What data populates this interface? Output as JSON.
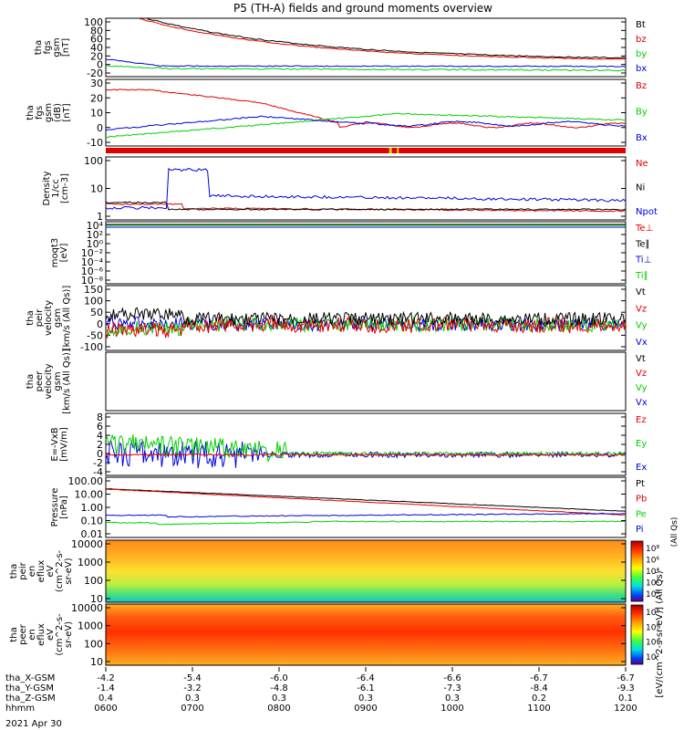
{
  "title": "P5 (TH-A) fields and ground moments overview",
  "date_label": "2021 Apr 30",
  "colors": {
    "black": "#000000",
    "red": "#e00000",
    "green": "#00d000",
    "blue": "#0000e0",
    "strip_red": "#e00000",
    "strip_yellow": "#e0d000"
  },
  "panels": [
    {
      "ylabel": [
        "tha",
        "fgs",
        "gsm",
        "[nT]"
      ],
      "ticks": [
        "100",
        "80",
        "60",
        "40",
        "20",
        "0",
        "-20"
      ],
      "legend": [
        {
          "text": "Bt",
          "color": "#000000"
        },
        {
          "text": "bz",
          "color": "#e00000"
        },
        {
          "text": "by",
          "color": "#00d000"
        },
        {
          "text": "bx",
          "color": "#0000e0"
        }
      ]
    },
    {
      "ylabel": [
        "tha",
        "fgs",
        "gsm",
        "(dB)",
        "[nT]"
      ],
      "ticks": [
        "30",
        "20",
        "10",
        "0",
        "-10"
      ],
      "legend": [
        {
          "text": "Bz",
          "color": "#e00000"
        },
        {
          "text": "By",
          "color": "#00d000"
        },
        {
          "text": "Bx",
          "color": "#0000e0"
        }
      ]
    },
    {
      "ylabel": [
        "Density",
        "1/cc",
        "[cm-3]"
      ],
      "ticks": [
        "100",
        "10",
        "1"
      ],
      "legend": [
        {
          "text": "Ne",
          "color": "#e00000"
        },
        {
          "text": "Ni",
          "color": "#000000"
        },
        {
          "text": "Npot",
          "color": "#0000e0"
        }
      ]
    },
    {
      "ylabel": [
        "moqt3",
        "[eV]"
      ],
      "ticks": [
        "10⁴",
        "10²",
        "10⁰",
        "10⁻²",
        "10⁻⁴",
        "10⁻⁶",
        "10⁻⁸"
      ],
      "legend": [
        {
          "text": "Te⊥",
          "color": "#e00000"
        },
        {
          "text": "Te∥",
          "color": "#000000"
        },
        {
          "text": "Ti⊥",
          "color": "#0000e0"
        },
        {
          "text": "Ti∥",
          "color": "#00d000"
        }
      ]
    },
    {
      "ylabel": [
        "tha",
        "peir",
        "velocity",
        "gsm",
        "[km/s (All Qs)]"
      ],
      "ticks": [
        "150",
        "100",
        "50",
        "0",
        "-50",
        "-100"
      ],
      "legend": [
        {
          "text": "Vt",
          "color": "#000000"
        },
        {
          "text": "Vz",
          "color": "#e00000"
        },
        {
          "text": "Vy",
          "color": "#00d000"
        },
        {
          "text": "Vx",
          "color": "#0000e0"
        }
      ]
    },
    {
      "ylabel": [
        "tha",
        "peer",
        "velocity",
        "gsm",
        "[km/s (All Qs)]"
      ],
      "ticks": [],
      "legend": [
        {
          "text": "Vt",
          "color": "#000000"
        },
        {
          "text": "Vz",
          "color": "#e00000"
        },
        {
          "text": "Vy",
          "color": "#00d000"
        },
        {
          "text": "Vx",
          "color": "#0000e0"
        }
      ]
    },
    {
      "ylabel": [
        "E=-VxB",
        "[mV/m]"
      ],
      "ticks": [
        "8",
        "6",
        "4",
        "2",
        "0",
        "-2",
        "-4"
      ],
      "legend": [
        {
          "text": "Ez",
          "color": "#e00000"
        },
        {
          "text": "Ey",
          "color": "#00d000"
        },
        {
          "text": "Ex",
          "color": "#0000e0"
        }
      ]
    },
    {
      "ylabel": [
        "Pressure",
        "[nPa]"
      ],
      "ticks": [
        "100.00",
        "10.00",
        "1.00",
        "0.10",
        "0.01"
      ],
      "legend": [
        {
          "text": "Pt",
          "color": "#000000"
        },
        {
          "text": "Pb",
          "color": "#e00000"
        },
        {
          "text": "Pe",
          "color": "#00d000"
        },
        {
          "text": "Pi",
          "color": "#0000e0"
        }
      ],
      "side_label": "(All Qs)"
    },
    {
      "ylabel": [
        "tha",
        "peir",
        "en",
        "eflux",
        "eV",
        "(cm^2-s-",
        "sr-eV)"
      ],
      "ticks": [
        "10000",
        "1000",
        "100",
        "10"
      ],
      "colorbar_ticks": [
        "10⁸",
        "10⁶",
        "10⁴",
        "10²",
        "10⁰"
      ]
    },
    {
      "ylabel": [
        "tha",
        "peer",
        "en",
        "eflux",
        "eV",
        "(cm^2-s-",
        "sr-eV)"
      ],
      "ticks": [
        "10000",
        "1000",
        "100",
        "10"
      ],
      "colorbar_ticks": [
        "10⁸",
        "10⁶",
        "10⁴",
        "10²"
      ]
    }
  ],
  "colorbar_label": "[eV/(cm^2-s-sr-eV)] (All Qs)",
  "footer": {
    "row_labels": [
      "tha_X-GSM",
      "tha_Y-GSM",
      "tha_Z-GSM",
      "hhmm"
    ],
    "columns": [
      {
        "x": "-4.2",
        "y": "-1.4",
        "z": "0.4",
        "t": "0600"
      },
      {
        "x": "-5.4",
        "y": "-3.2",
        "z": "0.3",
        "t": "0700"
      },
      {
        "x": "-6.0",
        "y": "-4.8",
        "z": "0.3",
        "t": "0800"
      },
      {
        "x": "-6.4",
        "y": "-6.1",
        "z": "0.3",
        "t": "0900"
      },
      {
        "x": "-6.6",
        "y": "-7.3",
        "z": "0.3",
        "t": "1000"
      },
      {
        "x": "-6.7",
        "y": "-8.4",
        "z": "0.2",
        "t": "1100"
      },
      {
        "x": "-6.7",
        "y": "-9.3",
        "z": "0.1",
        "t": "1200"
      }
    ]
  },
  "chart_data": {
    "type": "line",
    "title": "P5 (TH-A) fields and ground moments overview",
    "x_ticks": [
      "0600",
      "0700",
      "0800",
      "0900",
      "1000",
      "1100",
      "1200"
    ],
    "xlabel": "hhmm",
    "date": "2021 Apr 30",
    "panels": [
      {
        "name": "tha fgs gsm [nT]",
        "ylim": [
          -20,
          100
        ],
        "series": [
          {
            "name": "Bt",
            "x": [
              "0600",
              "0630",
              "0700",
              "0800",
              "0900",
              "1000",
              "1100",
              "1200"
            ],
            "values": [
              130,
              95,
              70,
              45,
              30,
              22,
              18,
              18
            ]
          },
          {
            "name": "bz",
            "x": [
              "0600",
              "0700",
              "0800",
              "0900",
              "1000",
              "1100",
              "1200"
            ],
            "values": [
              25,
              68,
              44,
              30,
              22,
              17,
              17
            ]
          },
          {
            "name": "by",
            "x": [
              "0600",
              "0700",
              "0800",
              "0900",
              "1000",
              "1100",
              "1200"
            ],
            "values": [
              -5,
              -2,
              -3,
              -4,
              -6,
              -8,
              -6
            ]
          },
          {
            "name": "bx",
            "x": [
              "0600",
              "0700",
              "0800",
              "0900",
              "1000",
              "1100",
              "1200"
            ],
            "values": [
              15,
              2,
              2,
              2,
              1,
              1,
              0
            ]
          }
        ]
      },
      {
        "name": "tha fgs gsm (dB) [nT]",
        "ylim": [
          -15,
          30
        ],
        "series": [
          {
            "name": "Bz",
            "x": [
              "0600",
              "0700",
              "0800",
              "0900",
              "1000",
              "1100",
              "1200"
            ],
            "values": [
              23,
              18,
              10,
              0,
              -1,
              -1,
              -3
            ]
          },
          {
            "name": "By",
            "x": [
              "0600",
              "0700",
              "0800",
              "0900",
              "1000",
              "1100",
              "1200"
            ],
            "values": [
              -9,
              -3,
              6,
              7,
              6,
              5,
              2
            ]
          },
          {
            "name": "Bx",
            "x": [
              "0600",
              "0700",
              "0800",
              "0900",
              "1000",
              "1100",
              "1200"
            ],
            "values": [
              -4,
              4,
              6,
              0,
              1,
              0,
              -1
            ]
          }
        ]
      },
      {
        "name": "Density 1/cc [cm-3]",
        "scale": "log",
        "ylim": [
          0.5,
          200
        ],
        "series": [
          {
            "name": "Ne",
            "x": [
              "0600",
              "0700",
              "0800",
              "0900",
              "1000",
              "1100",
              "1200"
            ],
            "values": [
              1.5,
              1.2,
              0.9,
              0.8,
              0.7,
              0.7,
              0.6
            ]
          },
          {
            "name": "Ni",
            "x": [
              "0600",
              "0700",
              "0800",
              "0900",
              "1000",
              "1100",
              "1200"
            ],
            "values": [
              1.8,
              0.9,
              0.8,
              0.7,
              0.7,
              0.6,
              0.6
            ]
          },
          {
            "name": "Npot",
            "x": [
              "0600",
              "0700",
              "0800",
              "0900",
              "1000",
              "1100",
              "1200"
            ],
            "values": [
              1.0,
              20,
              4,
              3.5,
              2.8,
              2.6,
              2.0
            ]
          }
        ]
      },
      {
        "name": "moqt3 [eV]",
        "scale": "log",
        "ylim": [
          1e-08,
          100000.0
        ],
        "series": [
          {
            "name": "Te⊥",
            "values": []
          },
          {
            "name": "Te∥",
            "values": []
          },
          {
            "name": "Ti⊥",
            "values": []
          },
          {
            "name": "Ti∥",
            "values": []
          }
        ]
      },
      {
        "name": "tha peir velocity gsm [km/s (All Qs)]",
        "ylim": [
          -100,
          150
        ],
        "series": [
          {
            "name": "Vt",
            "x": [
              "0600",
              "0700",
              "0800",
              "0900",
              "1000",
              "1100",
              "1200"
            ],
            "values": [
              40,
              25,
              20,
              20,
              20,
              20,
              20
            ]
          },
          {
            "name": "Vz",
            "x": [
              "0600",
              "0700",
              "0800",
              "0900",
              "1000",
              "1100",
              "1200"
            ],
            "values": [
              -10,
              0,
              0,
              0,
              0,
              0,
              0
            ]
          },
          {
            "name": "Vy",
            "x": [
              "0600",
              "0700",
              "0800",
              "0900",
              "1000",
              "1100",
              "1200"
            ],
            "values": [
              0,
              0,
              0,
              0,
              0,
              0,
              0
            ]
          },
          {
            "name": "Vx",
            "x": [
              "0600",
              "0700",
              "0800",
              "0900",
              "1000",
              "1100",
              "1200"
            ],
            "values": [
              0,
              0,
              0,
              0,
              0,
              0,
              0
            ]
          }
        ]
      },
      {
        "name": "tha peer velocity gsm [km/s (All Qs)]",
        "series": [
          {
            "name": "Vt",
            "values": []
          },
          {
            "name": "Vz",
            "values": []
          },
          {
            "name": "Vy",
            "values": []
          },
          {
            "name": "Vx",
            "values": []
          }
        ]
      },
      {
        "name": "E=-VxB [mV/m]",
        "ylim": [
          -4,
          8
        ],
        "series": [
          {
            "name": "Ez",
            "x": [
              "0600",
              "0700",
              "0800",
              "0900",
              "1000",
              "1100",
              "1200"
            ],
            "values": [
              0,
              0,
              0,
              0,
              0,
              0,
              0
            ]
          },
          {
            "name": "Ey",
            "x": [
              "0600",
              "0700",
              "0800",
              "0900",
              "1000",
              "1100",
              "1200"
            ],
            "values": [
              2,
              0.8,
              0.3,
              0.2,
              0.1,
              0.1,
              0.1
            ]
          },
          {
            "name": "Ex",
            "x": [
              "0600",
              "0700",
              "0800",
              "0900",
              "1000",
              "1100",
              "1200"
            ],
            "values": [
              0,
              0,
              0,
              0,
              0,
              0,
              0
            ]
          }
        ]
      },
      {
        "name": "Pressure [nPa]",
        "scale": "log",
        "ylim": [
          0.01,
          100
        ],
        "series": [
          {
            "name": "Pt",
            "x": [
              "0600",
              "0700",
              "0800",
              "0900",
              "1000",
              "1100",
              "1200"
            ],
            "values": [
              30,
              8,
              3,
              1.5,
              1.0,
              0.7,
              0.6
            ]
          },
          {
            "name": "Pb",
            "x": [
              "0600",
              "0700",
              "0800",
              "0900",
              "1000",
              "1100",
              "1200"
            ],
            "values": [
              28,
              7,
              2.5,
              0.9,
              0.4,
              0.3,
              0.3
            ]
          },
          {
            "name": "Pe",
            "x": [
              "0600",
              "0700",
              "0800",
              "0900",
              "1000",
              "1100",
              "1200"
            ],
            "values": [
              0.08,
              0.05,
              0.06,
              0.1,
              0.1,
              0.1,
              0.09
            ]
          },
          {
            "name": "Pi",
            "x": [
              "0600",
              "0700",
              "0800",
              "0900",
              "1000",
              "1100",
              "1200"
            ],
            "values": [
              0.3,
              0.2,
              0.3,
              0.4,
              0.4,
              0.3,
              0.3
            ]
          }
        ]
      },
      {
        "name": "tha peir en eflux",
        "type": "heatmap",
        "scale": "log",
        "ylim": [
          5,
          20000
        ],
        "colorbar": "[eV/(cm^2-s-sr-eV)]"
      },
      {
        "name": "tha peer en eflux",
        "type": "heatmap",
        "scale": "log",
        "ylim": [
          5,
          20000
        ],
        "colorbar": "[eV/(cm^2-s-sr-eV)]"
      }
    ]
  }
}
